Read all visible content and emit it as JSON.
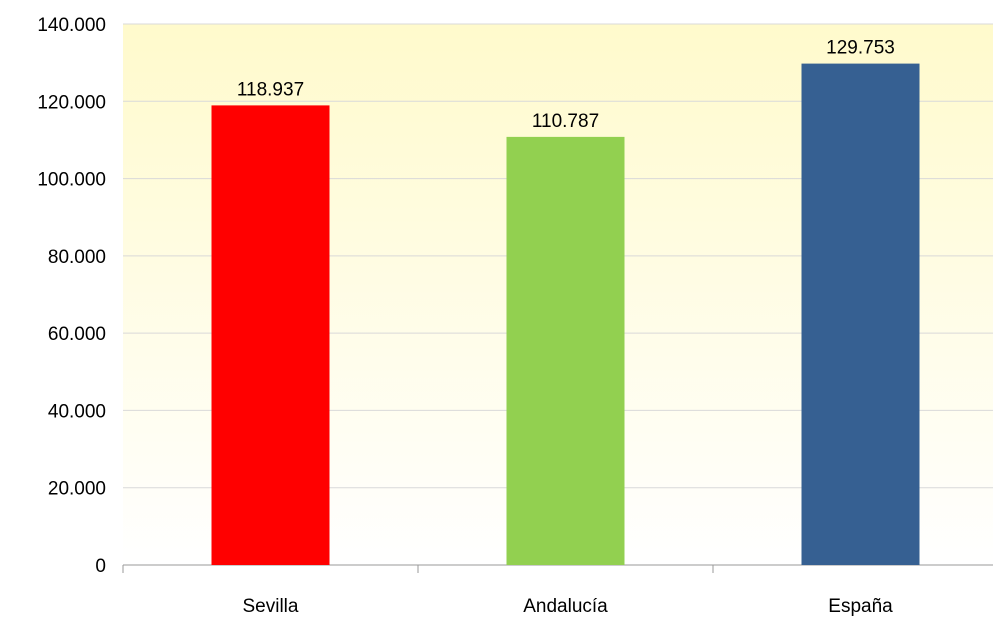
{
  "chart_data": {
    "type": "bar",
    "categories": [
      "Sevilla",
      "Andalucía",
      "España"
    ],
    "values": [
      118937,
      110787,
      129753
    ],
    "value_labels": [
      "118.937",
      "110.787",
      "129.753"
    ],
    "bar_colors": [
      "#ff0000",
      "#92d050",
      "#366092"
    ],
    "ylim": [
      0,
      140000
    ],
    "y_ticks": [
      0,
      20000,
      40000,
      60000,
      80000,
      100000,
      120000,
      140000
    ],
    "y_tick_labels": [
      "0",
      "20.000",
      "40.000",
      "60.000",
      "80.000",
      "100.000",
      "120.000",
      "140.000"
    ],
    "grid": true,
    "legend": "none",
    "title": "",
    "xlabel": "",
    "ylabel": "",
    "colors": {
      "plot_background_top": "#fffacc",
      "plot_background_bottom": "#ffffff",
      "gridline": "#d9d9d9",
      "axis": "#999999"
    }
  }
}
